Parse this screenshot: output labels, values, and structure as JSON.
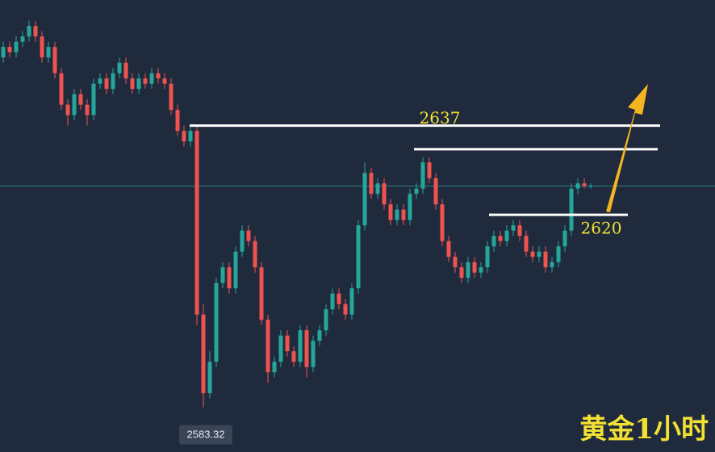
{
  "chart_data": {
    "type": "candlestick",
    "title": "黄金1小时",
    "candles": [
      [
        2650,
        2653,
        2649,
        2652
      ],
      [
        2652,
        2653,
        2650,
        2651
      ],
      [
        2651,
        2654,
        2650,
        2653
      ],
      [
        2653,
        2655,
        2652,
        2654
      ],
      [
        2654,
        2657,
        2653,
        2656
      ],
      [
        2656,
        2657,
        2653,
        2654
      ],
      [
        2654,
        2655,
        2649,
        2650
      ],
      [
        2650,
        2653,
        2649,
        2652
      ],
      [
        2652,
        2653,
        2646,
        2647
      ],
      [
        2647,
        2648,
        2640,
        2641
      ],
      [
        2641,
        2642,
        2637,
        2639
      ],
      [
        2639,
        2644,
        2638,
        2643
      ],
      [
        2643,
        2644,
        2640,
        2641
      ],
      [
        2641,
        2642,
        2637,
        2639
      ],
      [
        2639,
        2646,
        2638,
        2645
      ],
      [
        2645,
        2647,
        2644,
        2646
      ],
      [
        2646,
        2647,
        2643,
        2644
      ],
      [
        2644,
        2648,
        2643,
        2647
      ],
      [
        2647,
        2650,
        2646,
        2649
      ],
      [
        2649,
        2650,
        2645,
        2646
      ],
      [
        2646,
        2647,
        2643,
        2644
      ],
      [
        2644,
        2647,
        2643,
        2646
      ],
      [
        2646,
        2647,
        2644,
        2645
      ],
      [
        2645,
        2648,
        2644,
        2647
      ],
      [
        2647,
        2648,
        2645,
        2646
      ],
      [
        2646,
        2647,
        2644,
        2645
      ],
      [
        2645,
        2646,
        2639,
        2640
      ],
      [
        2640,
        2641,
        2635,
        2636
      ],
      [
        2636,
        2637,
        2633,
        2634
      ],
      [
        2634,
        2637,
        2633,
        2636
      ],
      [
        2636,
        2637,
        2599,
        2601
      ],
      [
        2601,
        2603,
        2583.32,
        2586
      ],
      [
        2586,
        2594,
        2585,
        2592
      ],
      [
        2592,
        2608,
        2591,
        2607
      ],
      [
        2607,
        2611,
        2606,
        2610
      ],
      [
        2610,
        2611,
        2605,
        2606
      ],
      [
        2606,
        2614,
        2605,
        2613
      ],
      [
        2613,
        2618,
        2612,
        2617
      ],
      [
        2617,
        2618,
        2614,
        2615
      ],
      [
        2615,
        2616,
        2609,
        2610
      ],
      [
        2610,
        2611,
        2599,
        2600
      ],
      [
        2600,
        2601,
        2588,
        2590
      ],
      [
        2590,
        2593,
        2589,
        2592
      ],
      [
        2592,
        2598,
        2591,
        2597
      ],
      [
        2597,
        2598,
        2593,
        2594
      ],
      [
        2594,
        2595,
        2591,
        2592
      ],
      [
        2592,
        2599,
        2591,
        2598
      ],
      [
        2598,
        2599,
        2589,
        2591
      ],
      [
        2591,
        2597,
        2590,
        2596
      ],
      [
        2596,
        2599,
        2595,
        2598
      ],
      [
        2598,
        2603,
        2597,
        2602
      ],
      [
        2602,
        2606,
        2601,
        2605
      ],
      [
        2605,
        2606,
        2602,
        2603
      ],
      [
        2603,
        2604,
        2600,
        2601
      ],
      [
        2601,
        2607,
        2600,
        2606
      ],
      [
        2606,
        2619,
        2605,
        2618
      ],
      [
        2618,
        2630,
        2617,
        2628
      ],
      [
        2628,
        2629,
        2623,
        2624
      ],
      [
        2624,
        2627,
        2623,
        2626
      ],
      [
        2626,
        2627,
        2621,
        2622
      ],
      [
        2622,
        2623,
        2618,
        2619
      ],
      [
        2619,
        2622,
        2618,
        2621
      ],
      [
        2621,
        2622,
        2618,
        2619
      ],
      [
        2619,
        2625,
        2618,
        2624
      ],
      [
        2624,
        2626,
        2623,
        2625
      ],
      [
        2625,
        2631,
        2624,
        2630
      ],
      [
        2630,
        2631,
        2626,
        2627
      ],
      [
        2627,
        2628,
        2621,
        2622
      ],
      [
        2622,
        2623,
        2614,
        2615
      ],
      [
        2615,
        2616,
        2611,
        2612
      ],
      [
        2612,
        2613,
        2609,
        2610
      ],
      [
        2610,
        2611,
        2607,
        2608
      ],
      [
        2608,
        2612,
        2607,
        2611
      ],
      [
        2611,
        2612,
        2608,
        2609
      ],
      [
        2609,
        2611,
        2608,
        2610
      ],
      [
        2610,
        2615,
        2609,
        2614
      ],
      [
        2614,
        2617,
        2613,
        2616
      ],
      [
        2616,
        2617,
        2614,
        2615
      ],
      [
        2615,
        2618,
        2614,
        2617
      ],
      [
        2617,
        2619,
        2616,
        2618
      ],
      [
        2618,
        2619,
        2615,
        2616
      ],
      [
        2616,
        2617,
        2612,
        2613
      ],
      [
        2613,
        2614,
        2611,
        2612
      ],
      [
        2612,
        2614,
        2611,
        2613
      ],
      [
        2613,
        2614,
        2609,
        2610
      ],
      [
        2610,
        2612,
        2609,
        2611
      ],
      [
        2611,
        2615,
        2610,
        2614
      ],
      [
        2614,
        2618,
        2613,
        2617
      ],
      [
        2617,
        2626,
        2616,
        2625
      ],
      [
        2625,
        2627,
        2624,
        2626
      ],
      [
        2626,
        2627,
        2625,
        2625.5
      ],
      [
        2625.5,
        2626,
        2625,
        2625.5
      ]
    ],
    "up_color": "#26a69a",
    "down_color": "#ef5350",
    "ylim": [
      2574.8,
      2660.95
    ],
    "levels": [
      2637,
      2632.5,
      2620
    ],
    "low": 2583.32,
    "last": 2625.5
  }
}
